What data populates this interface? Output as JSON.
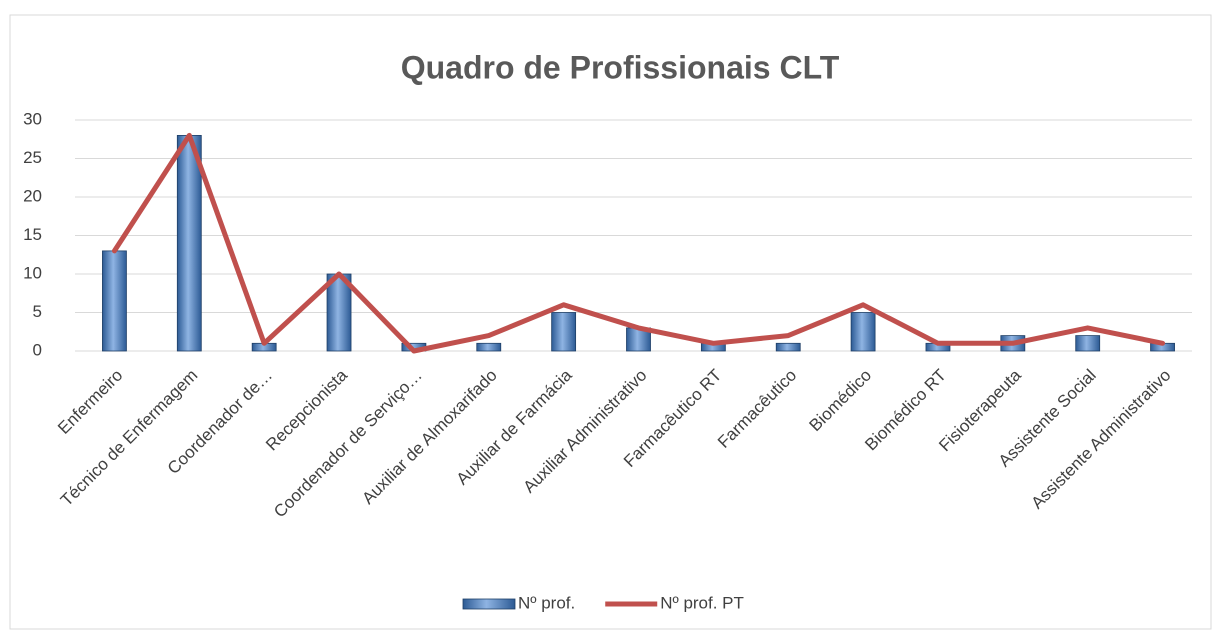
{
  "chart_data": {
    "type": "bar-line",
    "title": "Quadro de Profissionais CLT",
    "categories": [
      "Enfermeiro",
      "Técnico de Enfermagem",
      "Coordenador de…",
      "Recepcionista",
      "Coordenador de Serviço…",
      "Auxiliar de Almoxarifado",
      "Auxiliar de Farmácia",
      "Auxiliar Administrativo",
      "Farmacêutico RT",
      "Farmacêutico",
      "Biomédico",
      "Biomédico RT",
      "Fisioterapeuta",
      "Assistente Social",
      "Assistente Administrativo"
    ],
    "series": [
      {
        "name": "Nº prof.",
        "type": "bar",
        "color": "#4f81bd",
        "values": [
          13,
          28,
          1,
          10,
          1,
          1,
          5,
          3,
          1,
          1,
          5,
          1,
          2,
          2,
          1
        ]
      },
      {
        "name": "Nº prof. PT",
        "type": "line",
        "color": "#c0504d",
        "values": [
          13,
          28,
          1,
          10,
          0,
          2,
          6,
          3,
          1,
          2,
          6,
          1,
          1,
          3,
          1
        ]
      }
    ],
    "ylim": [
      0,
      30
    ],
    "yticks": [
      0,
      5,
      10,
      15,
      20,
      25,
      30
    ],
    "grid": true,
    "legend": "bottom"
  }
}
